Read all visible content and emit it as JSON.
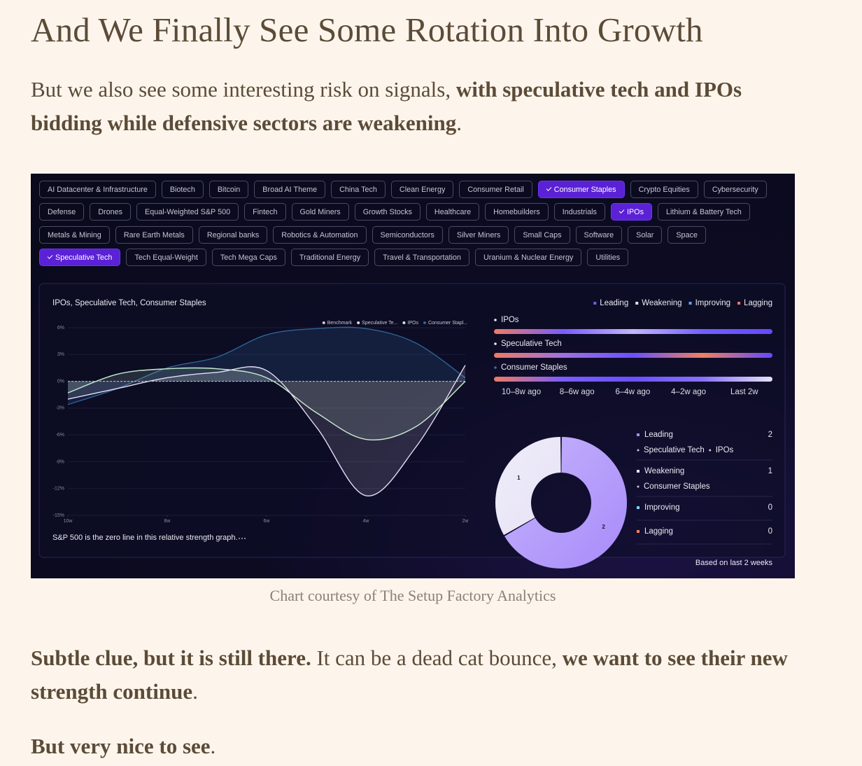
{
  "header": {
    "title": "And We Finally See Some Rotation Into Growth"
  },
  "intro": [
    {
      "text": "But we also see some interesting risk on signals, ",
      "bold": false
    },
    {
      "text": "with speculative tech and IPOs bidding while defensive sectors are weakening",
      "bold": true
    },
    {
      "text": ".",
      "bold": false
    }
  ],
  "dashboard": {
    "chips": [
      [
        {
          "label": "AI Datacenter & Infrastructure",
          "selected": false
        },
        {
          "label": "Biotech",
          "selected": false
        },
        {
          "label": "Bitcoin",
          "selected": false
        },
        {
          "label": "Broad AI Theme",
          "selected": false
        },
        {
          "label": "China Tech",
          "selected": false
        },
        {
          "label": "Clean Energy",
          "selected": false
        },
        {
          "label": "Consumer Retail",
          "selected": false
        },
        {
          "label": "Consumer Staples",
          "selected": true
        },
        {
          "label": "Crypto Equities",
          "selected": false
        },
        {
          "label": "Cybersecurity",
          "selected": false
        }
      ],
      [
        {
          "label": "Defense",
          "selected": false
        },
        {
          "label": "Drones",
          "selected": false
        },
        {
          "label": "Equal-Weighted S&P 500",
          "selected": false
        },
        {
          "label": "Fintech",
          "selected": false
        },
        {
          "label": "Gold Miners",
          "selected": false
        },
        {
          "label": "Growth Stocks",
          "selected": false
        },
        {
          "label": "Healthcare",
          "selected": false
        },
        {
          "label": "Homebuilders",
          "selected": false
        },
        {
          "label": "Industrials",
          "selected": false
        },
        {
          "label": "IPOs",
          "selected": true
        },
        {
          "label": "Lithium & Battery Tech",
          "selected": false
        }
      ],
      [
        {
          "label": "Metals & Mining",
          "selected": false
        },
        {
          "label": "Rare Earth Metals",
          "selected": false
        },
        {
          "label": "Regional banks",
          "selected": false
        },
        {
          "label": "Robotics & Automation",
          "selected": false
        },
        {
          "label": "Semiconductors",
          "selected": false
        },
        {
          "label": "Silver Miners",
          "selected": false
        },
        {
          "label": "Small Caps",
          "selected": false
        },
        {
          "label": "Software",
          "selected": false
        },
        {
          "label": "Solar",
          "selected": false
        },
        {
          "label": "Space",
          "selected": false
        }
      ],
      [
        {
          "label": "Speculative Tech",
          "selected": true
        },
        {
          "label": "Tech Equal-Weight",
          "selected": false
        },
        {
          "label": "Tech Mega Caps",
          "selected": false
        },
        {
          "label": "Traditional Energy",
          "selected": false
        },
        {
          "label": "Travel & Transportation",
          "selected": false
        },
        {
          "label": "Uranium & Nuclear Energy",
          "selected": false
        },
        {
          "label": "Utilities",
          "selected": false
        }
      ]
    ],
    "line_chart": {
      "type": "line",
      "title": "IPOs, Speculative Tech, Consumer Staples",
      "x": [
        10,
        9,
        8,
        7,
        6,
        5,
        4,
        3,
        2
      ],
      "xlim": [
        10,
        2
      ],
      "xticks": [
        {
          "value": 10,
          "label": "10w"
        },
        {
          "value": 8,
          "label": "8w"
        },
        {
          "value": 6,
          "label": "6w"
        },
        {
          "value": 4,
          "label": "4w"
        },
        {
          "value": 2,
          "label": "2w"
        }
      ],
      "ylim": [
        -15,
        6
      ],
      "yticks": [
        {
          "value": 6,
          "label": "6%"
        },
        {
          "value": 3,
          "label": "3%"
        },
        {
          "value": 0,
          "label": "0%"
        },
        {
          "value": -3,
          "label": "-3%"
        },
        {
          "value": -6,
          "label": "-6%"
        },
        {
          "value": -9,
          "label": "-9%"
        },
        {
          "value": -12,
          "label": "-12%"
        },
        {
          "value": -15,
          "label": "-15%"
        }
      ],
      "grid": true,
      "series": [
        {
          "name": "Benchmark",
          "color": "#c8c8d0",
          "values": [
            0,
            0,
            0,
            0,
            0,
            0,
            0,
            0,
            0
          ]
        },
        {
          "name": "Speculative Te...",
          "color": "#e6dcf4",
          "values": [
            -2,
            -0.8,
            0.4,
            1,
            1.2,
            -5.1,
            -12.8,
            -7.4,
            1.8
          ]
        },
        {
          "name": "IPOs",
          "color": "#c6eecf",
          "values": [
            -1.3,
            0.8,
            1.4,
            1.4,
            0.4,
            -3.5,
            -6.5,
            -5.1,
            0
          ]
        },
        {
          "name": "Consumer Stapl...",
          "color": "#2f6396",
          "values": [
            -2.6,
            -0.8,
            1.5,
            2.7,
            5.2,
            5.9,
            5.9,
            4.3,
            0.4
          ]
        }
      ],
      "footnote": "S&P 500 is the zero line in this relative strength graph."
    },
    "quadrants": [
      {
        "name": "Leading",
        "color": "#6d5efc"
      },
      {
        "name": "Weakening",
        "color": "#e0e0ea"
      },
      {
        "name": "Improving",
        "color": "#60a5fa"
      },
      {
        "name": "Lagging",
        "color": "#f87360"
      }
    ],
    "rotation": {
      "rows": [
        {
          "name": "IPOs",
          "colors": [
            "#ee7a62",
            "#7a5cff",
            "#c4b4ff",
            "#7060ff",
            "#6448ff"
          ]
        },
        {
          "name": "Speculative Tech",
          "colors": [
            "#ee7a62",
            "#a070e0",
            "#6a50ff",
            "#ee8060",
            "#6448ff"
          ]
        },
        {
          "name": "Consumer Staples",
          "colors": [
            "#ee7a62",
            "#7a5cff",
            "#6a50ff",
            "#8a70ff",
            "#e4e0f4"
          ]
        }
      ],
      "periods": [
        "10–8w ago",
        "8–6w ago",
        "6–4w ago",
        "4–2w ago",
        "Last 2w"
      ]
    },
    "donut": {
      "items": [
        {
          "name": "Leading",
          "value": 2,
          "color": "#a78bfa",
          "members": [
            "Speculative Tech",
            "IPOs"
          ]
        },
        {
          "name": "Weakening",
          "value": 1,
          "color": "#e6e2f6",
          "members": [
            "Consumer Staples"
          ]
        },
        {
          "name": "Improving",
          "value": 0,
          "color": "#7dd3fc",
          "members": []
        },
        {
          "name": "Lagging",
          "value": 0,
          "color": "#fb8060",
          "members": []
        }
      ],
      "note": "Based on last 2 weeks"
    }
  },
  "caption": "Chart courtesy of The Setup Factory Analytics",
  "body": [
    [
      {
        "text": "Subtle clue, but it is still there.",
        "bold": true
      },
      {
        "text": " It can be a dead cat bounce, ",
        "bold": false
      },
      {
        "text": "we want to see their new strength continue",
        "bold": true
      },
      {
        "text": ".",
        "bold": false
      }
    ],
    [
      {
        "text": "But very nice to see",
        "bold": true
      },
      {
        "text": ".",
        "bold": false
      }
    ]
  ]
}
